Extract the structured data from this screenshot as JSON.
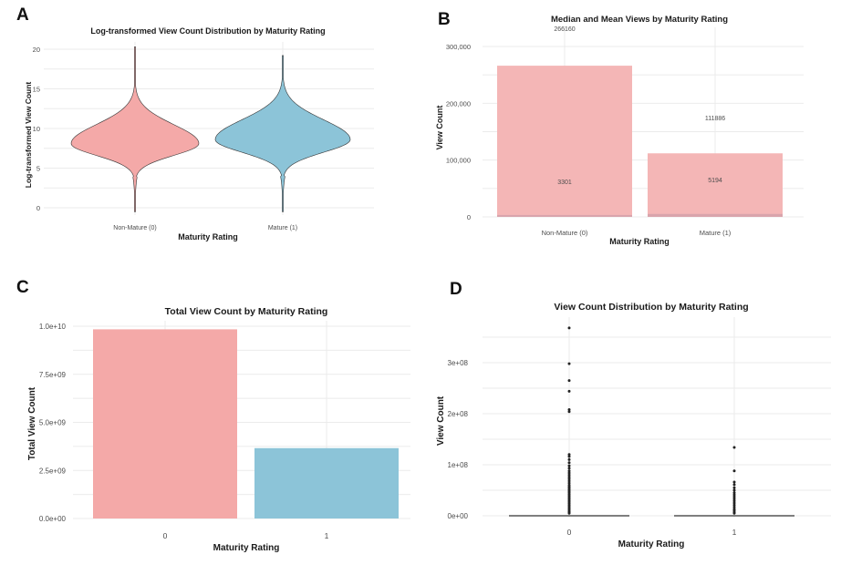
{
  "panels": {
    "A": {
      "letter": "A",
      "title": "Log-transformed View Count Distribution by Maturity Rating",
      "xlabel": "Maturity Rating",
      "ylabel": "Log-transformed View Count",
      "categories": [
        "Non-Mature (0)",
        "Mature (1)"
      ],
      "yticks": [
        "0",
        "5",
        "10",
        "15",
        "20"
      ]
    },
    "B": {
      "letter": "B",
      "title": "Median and Mean Views by Maturity Rating",
      "xlabel": "Maturity Rating",
      "ylabel": "View Count",
      "categories": [
        "Non-Mature (0)",
        "Mature (1)"
      ],
      "yticks": [
        "0",
        "100,000",
        "200,000",
        "300,000"
      ],
      "mean_labels": [
        "266160",
        "111886"
      ],
      "median_labels": [
        "3301",
        "5194"
      ]
    },
    "C": {
      "letter": "C",
      "title": "Total View Count by Maturity Rating",
      "xlabel": "Maturity Rating",
      "ylabel": "Total View Count",
      "categories": [
        "0",
        "1"
      ],
      "yticks": [
        "0.0e+00",
        "2.5e+09",
        "5.0e+09",
        "7.5e+09",
        "1.0e+10"
      ]
    },
    "D": {
      "letter": "D",
      "title": "View Count Distribution by Maturity Rating",
      "xlabel": "Maturity Rating",
      "ylabel": "View Count",
      "categories": [
        "0",
        "1"
      ],
      "yticks": [
        "0e+00",
        "1e+08",
        "2e+08",
        "3e+08"
      ]
    }
  },
  "colors": {
    "non_mature": "#f4a9a8",
    "mature": "#8cc4d8",
    "bar_b": "#f4b6b6",
    "median_overlay": "#d9a4ac"
  },
  "chart_data": [
    {
      "type": "violin",
      "title": "Log-transformed View Count Distribution by Maturity Rating",
      "xlabel": "Maturity Rating",
      "ylabel": "Log-transformed View Count",
      "categories": [
        "Non-Mature (0)",
        "Mature (1)"
      ],
      "ylim": [
        0,
        20
      ],
      "series": [
        {
          "category": "Non-Mature (0)",
          "min": -0.5,
          "max": 20.3,
          "mode": 8.1
        },
        {
          "category": "Mature (1)",
          "min": -0.5,
          "max": 19.2,
          "mode": 8.6
        }
      ]
    },
    {
      "type": "bar",
      "title": "Median and Mean Views by Maturity Rating",
      "xlabel": "Maturity Rating",
      "ylabel": "View Count",
      "categories": [
        "Non-Mature (0)",
        "Mature (1)"
      ],
      "series": [
        {
          "name": "mean",
          "values": [
            266160,
            111886
          ]
        },
        {
          "name": "median",
          "values": [
            3301,
            5194
          ]
        }
      ],
      "ylim": [
        0,
        300000
      ]
    },
    {
      "type": "bar",
      "title": "Total View Count by Maturity Rating",
      "xlabel": "Maturity Rating",
      "ylabel": "Total View Count",
      "categories": [
        "0",
        "1"
      ],
      "values": [
        9840000000,
        3660000000
      ],
      "ylim": [
        0,
        10000000000
      ]
    },
    {
      "type": "box",
      "title": "View Count Distribution by Maturity Rating",
      "xlabel": "Maturity Rating",
      "ylabel": "View Count",
      "categories": [
        "0",
        "1"
      ],
      "ylim": [
        0,
        370000000
      ],
      "outliers": [
        {
          "category": "0",
          "values": [
            368000000,
            298000000,
            265000000,
            244000000,
            208000000,
            204000000,
            120000000,
            116000000,
            110000000,
            104000000,
            98000000,
            93000000,
            88000000,
            84000000,
            80000000,
            76000000,
            72000000,
            68000000,
            64000000,
            60000000,
            57000000,
            54000000,
            51000000,
            48000000,
            45000000,
            42000000,
            39000000,
            36000000,
            33000000,
            30000000,
            27000000,
            24000000,
            21000000,
            18000000,
            15000000,
            12000000,
            9000000,
            7000000,
            5000000
          ]
        },
        {
          "category": "1",
          "values": [
            134000000,
            88000000,
            66000000,
            61000000,
            55000000,
            50000000,
            45000000,
            41000000,
            37000000,
            33000000,
            29000000,
            25000000,
            21000000,
            17000000,
            13000000,
            10000000,
            7000000,
            5000000
          ]
        }
      ]
    }
  ]
}
